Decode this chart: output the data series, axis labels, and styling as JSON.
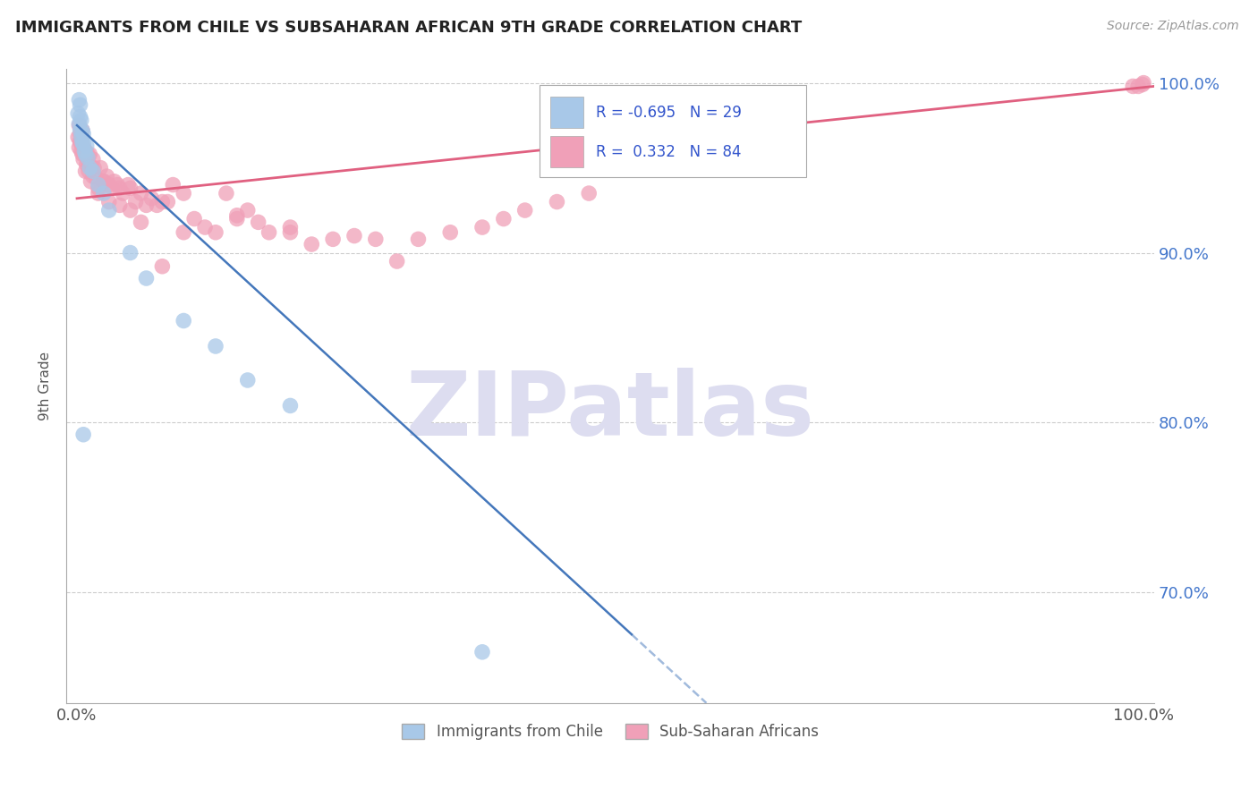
{
  "title": "IMMIGRANTS FROM CHILE VS SUBSAHARAN AFRICAN 9TH GRADE CORRELATION CHART",
  "source": "Source: ZipAtlas.com",
  "ylabel": "9th Grade",
  "xlim": [
    -0.01,
    1.01
  ],
  "ylim": [
    0.635,
    1.008
  ],
  "yticks": [
    0.7,
    0.8,
    0.9,
    1.0
  ],
  "ytick_labels": [
    "70.0%",
    "80.0%",
    "90.0%",
    "100.0%"
  ],
  "xtick_positions": [
    0.0,
    1.0
  ],
  "xtick_labels": [
    "0.0%",
    "100.0%"
  ],
  "legend_R_blue": "-0.695",
  "legend_N_blue": "29",
  "legend_R_pink": "0.332",
  "legend_N_pink": "84",
  "blue_color": "#A8C8E8",
  "pink_color": "#F0A0B8",
  "blue_line_color": "#4477BB",
  "pink_line_color": "#E06080",
  "watermark_color": "#DDDDF0",
  "blue_line_x": [
    0.0,
    1.05
  ],
  "blue_line_y": [
    0.975,
    0.37
  ],
  "blue_line_solid_end_x": 0.52,
  "pink_line_x": [
    0.0,
    1.01
  ],
  "pink_line_y": [
    0.932,
    0.998
  ],
  "blue_scatter_x": [
    0.001,
    0.002,
    0.002,
    0.003,
    0.003,
    0.004,
    0.004,
    0.005,
    0.005,
    0.006,
    0.006,
    0.007,
    0.008,
    0.009,
    0.01,
    0.012,
    0.015,
    0.02,
    0.025,
    0.03,
    0.05,
    0.065,
    0.1,
    0.13,
    0.16,
    0.2,
    0.006,
    0.38,
    0.003
  ],
  "blue_scatter_y": [
    0.982,
    0.976,
    0.99,
    0.972,
    0.987,
    0.968,
    0.978,
    0.972,
    0.965,
    0.964,
    0.97,
    0.96,
    0.958,
    0.963,
    0.956,
    0.95,
    0.948,
    0.94,
    0.935,
    0.925,
    0.9,
    0.885,
    0.86,
    0.845,
    0.825,
    0.81,
    0.793,
    0.665,
    0.98
  ],
  "pink_scatter_x": [
    0.001,
    0.002,
    0.002,
    0.003,
    0.003,
    0.004,
    0.004,
    0.005,
    0.005,
    0.006,
    0.007,
    0.008,
    0.009,
    0.01,
    0.011,
    0.012,
    0.013,
    0.014,
    0.015,
    0.016,
    0.018,
    0.02,
    0.022,
    0.025,
    0.028,
    0.03,
    0.033,
    0.035,
    0.038,
    0.04,
    0.043,
    0.048,
    0.05,
    0.055,
    0.06,
    0.065,
    0.07,
    0.075,
    0.08,
    0.085,
    0.09,
    0.1,
    0.11,
    0.12,
    0.13,
    0.14,
    0.15,
    0.16,
    0.17,
    0.18,
    0.2,
    0.22,
    0.24,
    0.26,
    0.28,
    0.3,
    0.32,
    0.35,
    0.38,
    0.4,
    0.42,
    0.45,
    0.48,
    0.003,
    0.006,
    0.008,
    0.01,
    0.015,
    0.02,
    0.025,
    0.03,
    0.04,
    0.05,
    0.06,
    0.08,
    0.1,
    0.15,
    0.2,
    0.6,
    0.65,
    0.99,
    0.995,
    0.999,
    1.0
  ],
  "pink_scatter_y": [
    0.968,
    0.962,
    0.975,
    0.966,
    0.97,
    0.96,
    0.965,
    0.958,
    0.972,
    0.962,
    0.958,
    0.96,
    0.952,
    0.955,
    0.948,
    0.958,
    0.942,
    0.95,
    0.955,
    0.95,
    0.944,
    0.938,
    0.95,
    0.942,
    0.945,
    0.94,
    0.938,
    0.942,
    0.94,
    0.938,
    0.935,
    0.94,
    0.938,
    0.93,
    0.935,
    0.928,
    0.932,
    0.928,
    0.93,
    0.93,
    0.94,
    0.935,
    0.92,
    0.915,
    0.912,
    0.935,
    0.922,
    0.925,
    0.918,
    0.912,
    0.912,
    0.905,
    0.908,
    0.91,
    0.908,
    0.895,
    0.908,
    0.912,
    0.915,
    0.92,
    0.925,
    0.93,
    0.935,
    0.965,
    0.955,
    0.948,
    0.958,
    0.945,
    0.935,
    0.942,
    0.93,
    0.928,
    0.925,
    0.918,
    0.892,
    0.912,
    0.92,
    0.915,
    0.96,
    0.955,
    0.998,
    0.998,
    0.999,
    1.0
  ]
}
